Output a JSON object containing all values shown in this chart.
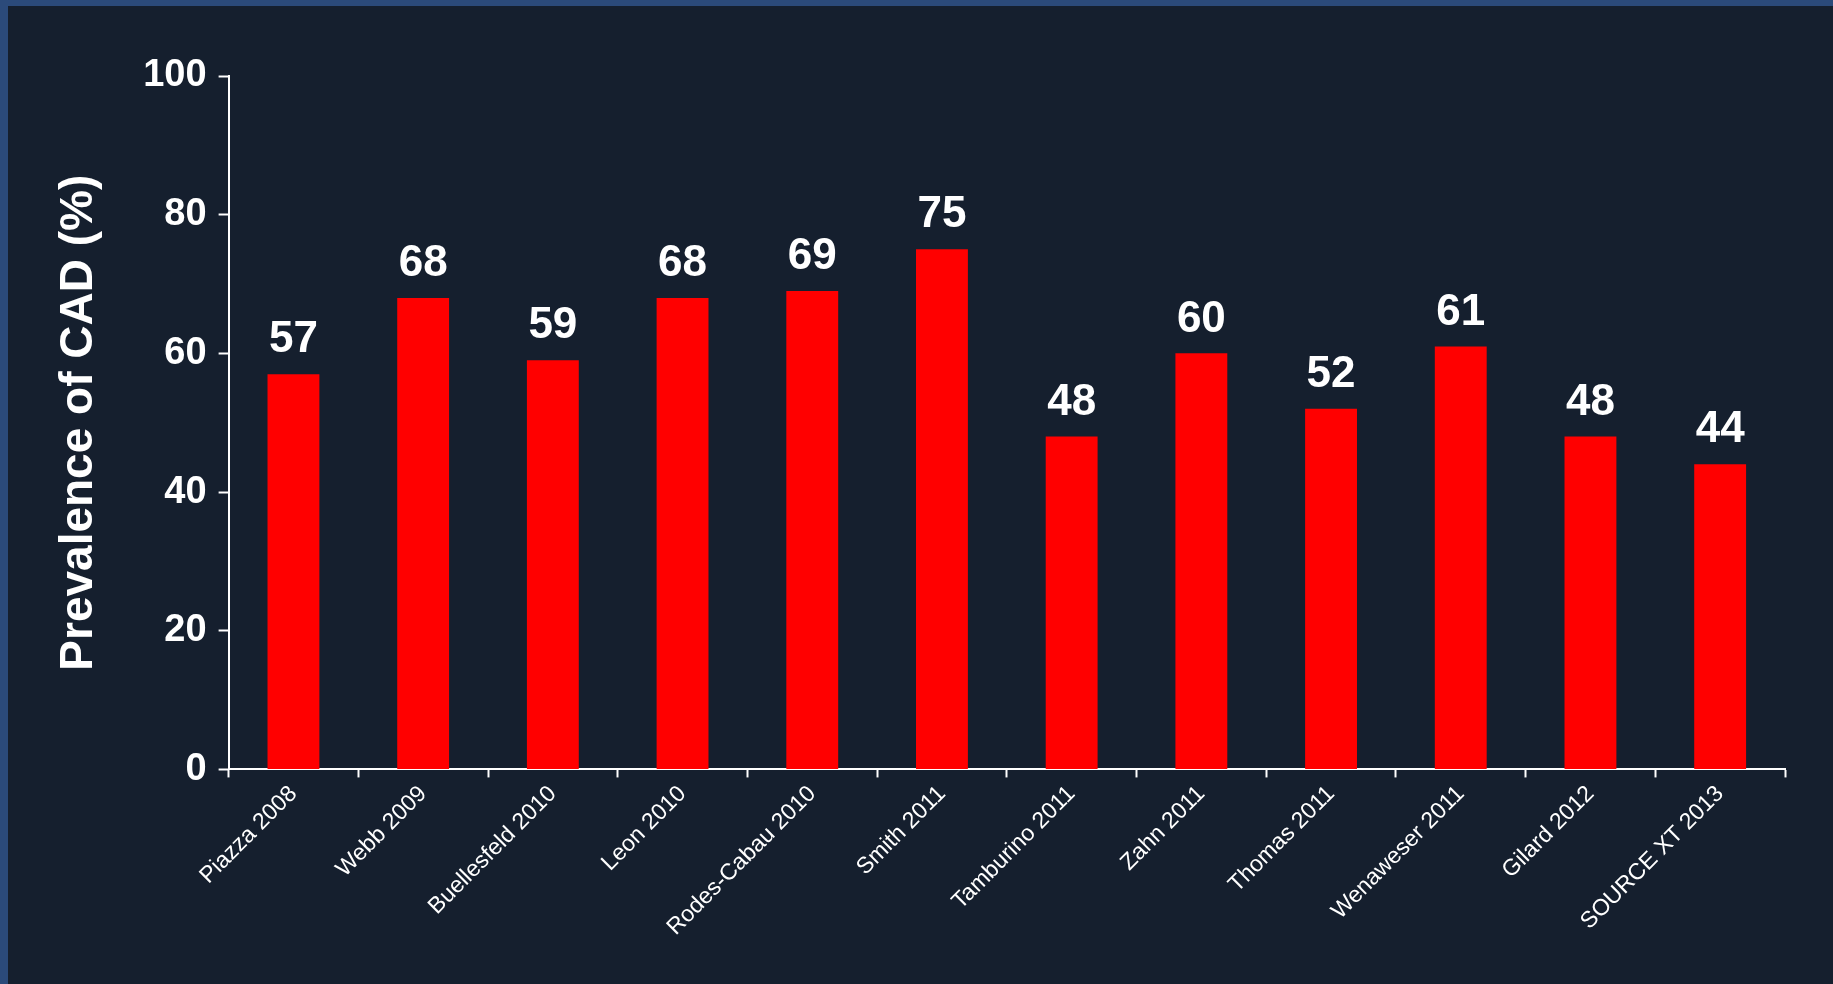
{
  "chart_data": {
    "type": "bar",
    "ylabel": "Prevalence of CAD (%)",
    "categories": [
      "Piazza 2008",
      "Webb 2009",
      "Buellesfeld 2010",
      "Leon 2010",
      "Rodes-Cabau 2010",
      "Smith 2011",
      "Tamburino 2011",
      "Zahn 2011",
      "Thomas 2011",
      "Wenaweser 2011",
      "Gilard 2012",
      "SOURCE XT 2013"
    ],
    "values": [
      57,
      68,
      59,
      68,
      69,
      75,
      48,
      60,
      52,
      61,
      48,
      44
    ],
    "color": "#ff0000",
    "ylim": [
      0,
      100
    ],
    "yticks": [
      0,
      20,
      40,
      60,
      80,
      100
    ],
    "grid": false,
    "legend": false,
    "data_labels": true
  }
}
